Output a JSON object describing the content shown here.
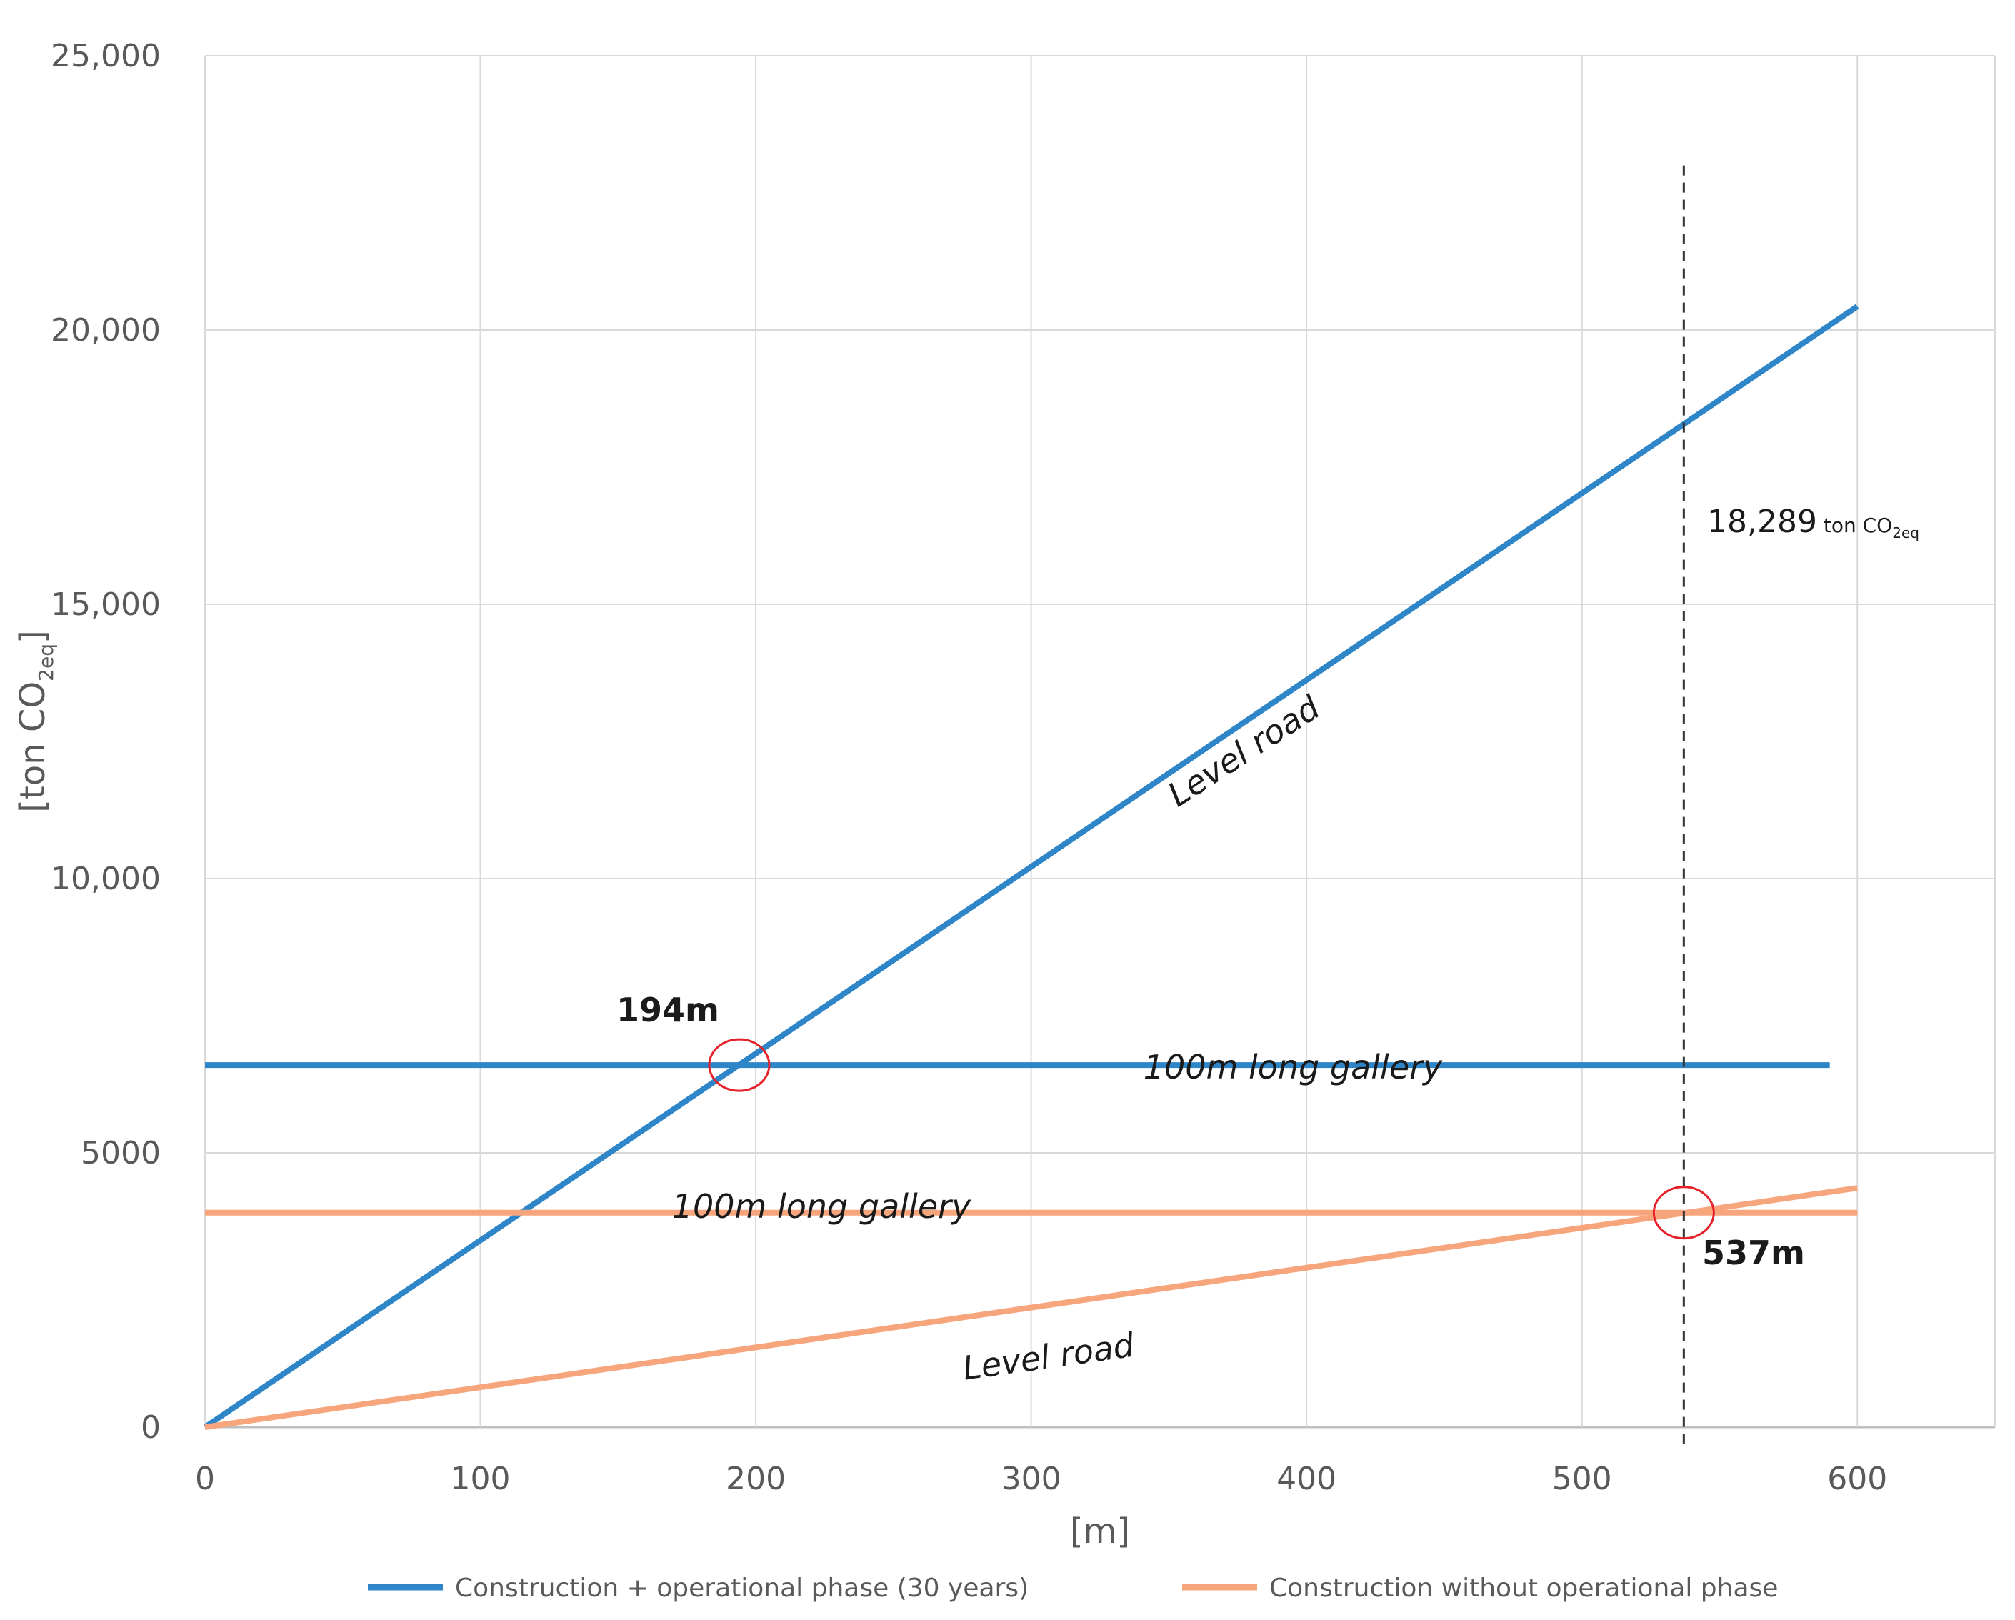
{
  "chart_data": {
    "type": "line",
    "title": "",
    "xlabel": "[m]",
    "ylabel_main": "[ton CO",
    "ylabel_sub": "2eq",
    "ylabel_close": "]",
    "xlim": [
      0,
      650
    ],
    "ylim": [
      0,
      25000
    ],
    "x_ticks": [
      0,
      100,
      200,
      300,
      400,
      500,
      600
    ],
    "x_tick_labels": [
      "0",
      "100",
      "200",
      "300",
      "400",
      "500",
      "600"
    ],
    "y_ticks": [
      0,
      5000,
      10000,
      15000,
      20000,
      25000
    ],
    "y_tick_labels": [
      "0",
      "5000",
      "10,000",
      "15,000",
      "20,000",
      "25,000"
    ],
    "grid": true,
    "legend_position": "bottom",
    "series": [
      {
        "name": "Construction + operational phase (30 years)",
        "color": "#2E86C8",
        "lines": [
          {
            "label": "Level road",
            "x": [
              0,
              600
            ],
            "y": [
              0,
              20430
            ]
          },
          {
            "label": "100m long gallery",
            "x": [
              0,
              590
            ],
            "y": [
              6600,
              6600
            ]
          }
        ]
      },
      {
        "name": "Construction without operational phase",
        "color": "#F7A57C",
        "lines": [
          {
            "label": "Level road",
            "x": [
              0,
              600
            ],
            "y": [
              0,
              4360
            ]
          },
          {
            "label": "100m long gallery",
            "x": [
              0,
              600
            ],
            "y": [
              3910,
              3910
            ]
          }
        ]
      }
    ],
    "annotations": {
      "intersection_blue": {
        "x": 194,
        "y": 6600,
        "label": "194m"
      },
      "intersection_orange": {
        "x": 537,
        "y": 3910,
        "label": "537m"
      },
      "vertical_marker": {
        "x": 537,
        "y_top": 23000
      },
      "value_label": {
        "main": "18,289",
        "unit": " ton CO",
        "sub": "2eq"
      }
    }
  }
}
